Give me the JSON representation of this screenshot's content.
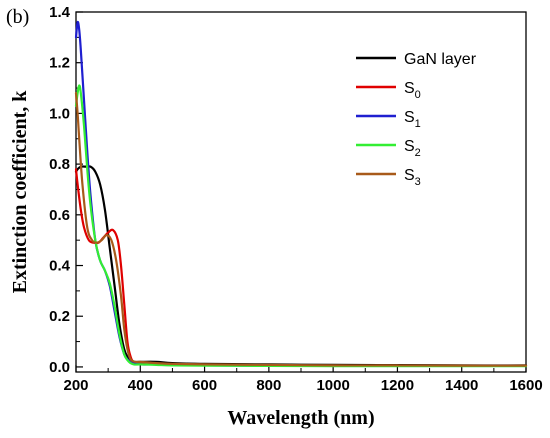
{
  "panel_label": "(b)",
  "chart_data": {
    "type": "line",
    "xlabel": "Wavelength (nm)",
    "ylabel": "Extinction coefficient, k",
    "xlim": [
      200,
      1600
    ],
    "ylim": [
      -0.02,
      1.4
    ],
    "x_ticks": [
      200,
      400,
      600,
      800,
      1000,
      1200,
      1400,
      1600
    ],
    "y_ticks": [
      0.0,
      0.2,
      0.4,
      0.6,
      0.8,
      1.0,
      1.2,
      1.4
    ],
    "x_tick_labels": [
      "200",
      "400",
      "600",
      "800",
      "1000",
      "1200",
      "1400",
      "1600"
    ],
    "y_tick_labels": [
      "0.0",
      "0.2",
      "0.4",
      "0.6",
      "0.8",
      "1.0",
      "1.2",
      "1.4"
    ],
    "legend_position": "top-right",
    "series": [
      {
        "name": "GaN layer",
        "base": "GaN layer",
        "sub": "",
        "color": "#000000",
        "x": [
          200,
          205,
          215,
          230,
          245,
          260,
          275,
          290,
          305,
          320,
          335,
          350,
          365,
          380,
          400,
          450,
          500,
          600,
          800,
          1000,
          1200,
          1400,
          1600
        ],
        "y": [
          0.77,
          0.78,
          0.79,
          0.79,
          0.79,
          0.77,
          0.72,
          0.62,
          0.47,
          0.32,
          0.17,
          0.07,
          0.03,
          0.02,
          0.02,
          0.02,
          0.015,
          0.012,
          0.01,
          0.008,
          0.007,
          0.006,
          0.006
        ]
      },
      {
        "name": "S0",
        "base": "S",
        "sub": "0",
        "color": "#e00000",
        "x": [
          200,
          205,
          215,
          225,
          240,
          255,
          270,
          285,
          300,
          315,
          330,
          340,
          350,
          360,
          370,
          380,
          400,
          450,
          500,
          600,
          800,
          1000,
          1200,
          1400,
          1600
        ],
        "y": [
          0.78,
          0.72,
          0.62,
          0.55,
          0.5,
          0.49,
          0.49,
          0.51,
          0.53,
          0.54,
          0.5,
          0.4,
          0.25,
          0.1,
          0.04,
          0.02,
          0.015,
          0.012,
          0.01,
          0.008,
          0.006,
          0.005,
          0.005,
          0.004,
          0.004
        ]
      },
      {
        "name": "S1",
        "base": "S",
        "sub": "1",
        "color": "#1f1fd0",
        "x": [
          200,
          205,
          210,
          215,
          225,
          235,
          245,
          260,
          275,
          290,
          305,
          320,
          335,
          350,
          360,
          370,
          385,
          400,
          450,
          500,
          600,
          800,
          1000,
          1200,
          1400,
          1600
        ],
        "y": [
          1.3,
          1.36,
          1.33,
          1.25,
          1.05,
          0.85,
          0.68,
          0.5,
          0.42,
          0.38,
          0.32,
          0.22,
          0.12,
          0.05,
          0.03,
          0.02,
          0.015,
          0.01,
          0.01,
          0.008,
          0.006,
          0.005,
          0.004,
          0.004,
          0.004,
          0.004
        ]
      },
      {
        "name": "S2",
        "base": "S",
        "sub": "2",
        "color": "#33ee33",
        "x": [
          200,
          205,
          210,
          215,
          225,
          235,
          245,
          260,
          275,
          290,
          305,
          320,
          335,
          350,
          365,
          380,
          400,
          450,
          500,
          600,
          800,
          1000,
          1200,
          1400,
          1600
        ],
        "y": [
          1.03,
          1.08,
          1.11,
          1.08,
          0.95,
          0.78,
          0.64,
          0.5,
          0.42,
          0.38,
          0.33,
          0.24,
          0.13,
          0.05,
          0.02,
          0.01,
          0.01,
          0.008,
          0.006,
          0.005,
          0.004,
          0.003,
          0.003,
          0.003,
          0.003
        ]
      },
      {
        "name": "S3",
        "base": "S",
        "sub": "3",
        "color": "#a85a1a",
        "x": [
          200,
          205,
          210,
          220,
          235,
          250,
          265,
          280,
          295,
          310,
          325,
          340,
          350,
          360,
          370,
          385,
          400,
          450,
          500,
          600,
          800,
          1000,
          1200,
          1400,
          1600
        ],
        "y": [
          1.08,
          1.0,
          0.9,
          0.72,
          0.55,
          0.5,
          0.49,
          0.5,
          0.52,
          0.5,
          0.42,
          0.28,
          0.15,
          0.07,
          0.03,
          0.02,
          0.02,
          0.015,
          0.012,
          0.01,
          0.008,
          0.006,
          0.006,
          0.005,
          0.005
        ]
      }
    ]
  }
}
